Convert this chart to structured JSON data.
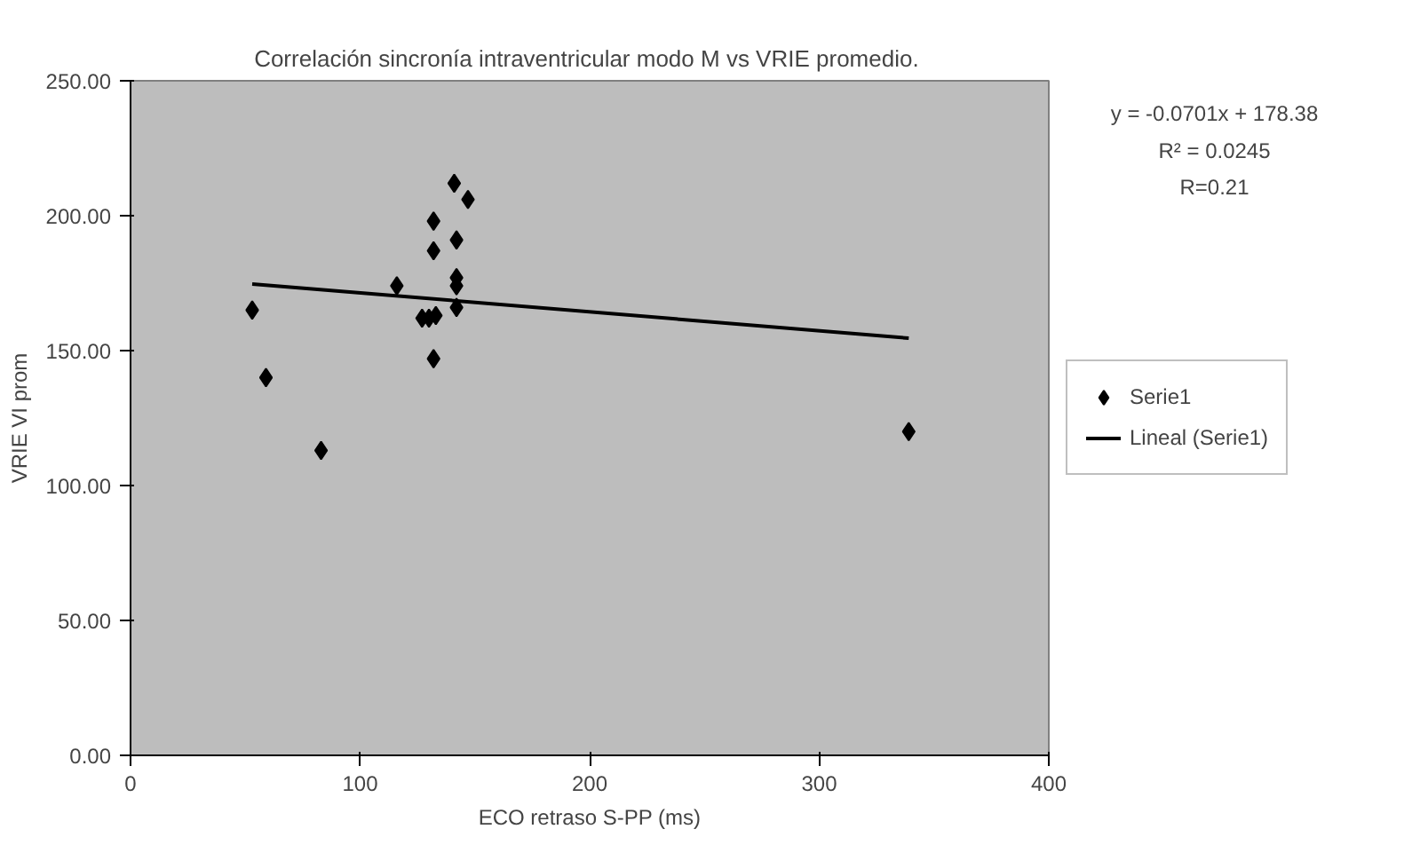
{
  "chart_data": {
    "type": "scatter",
    "title": "Correlación sincronía intraventricular modo M vs  VRIE promedio.",
    "xlabel": "ECO retraso S-PP (ms)",
    "ylabel": "VRIE VI prom",
    "xlim": [
      0,
      400
    ],
    "xticks": [
      0,
      100,
      200,
      300,
      400
    ],
    "ylim": [
      0,
      250
    ],
    "yticks": [
      {
        "value": 0,
        "label": "0.00"
      },
      {
        "value": 50,
        "label": "50.00"
      },
      {
        "value": 100,
        "label": "100.00"
      },
      {
        "value": 150,
        "label": "150.00"
      },
      {
        "value": 200,
        "label": "200.00"
      },
      {
        "value": 250,
        "label": "250.00"
      }
    ],
    "grid": false,
    "legend": "right",
    "annotations": [
      "y = -0.0701x + 178.38",
      "R² = 0.0245",
      "R=0.21"
    ],
    "series": [
      {
        "name": "Serie1",
        "type": "scatter",
        "marker": "diamond",
        "color": "#000000",
        "x": [
          53,
          59,
          83,
          116,
          132,
          132,
          127,
          130,
          133,
          132,
          141,
          147,
          142,
          142,
          142,
          142,
          339
        ],
        "values": [
          165,
          140,
          113,
          174,
          198,
          187,
          162,
          162,
          163,
          147,
          212,
          206,
          191,
          177,
          174,
          166,
          120
        ]
      },
      {
        "name": "Lineal (Serie1)",
        "type": "line",
        "color": "#000000",
        "x": [
          53,
          339
        ],
        "values": [
          174.7,
          154.6
        ]
      }
    ]
  }
}
